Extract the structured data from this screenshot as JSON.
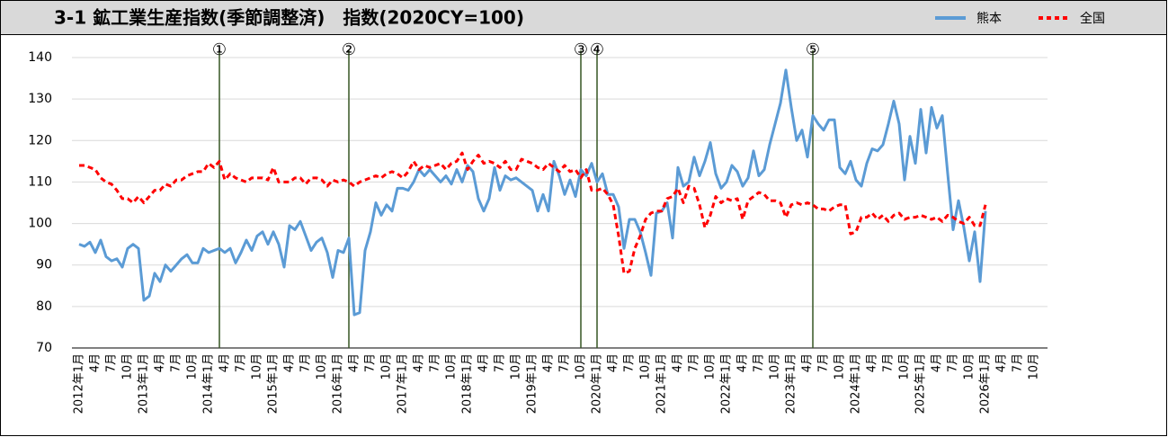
{
  "chart_data": {
    "type": "line",
    "title": "3-1 鉱工業生産指数(季節調整済)　指数(2020CY=100)",
    "categories": [
      "2012年1月",
      null,
      null,
      "4月",
      null,
      null,
      "7月",
      null,
      null,
      "10月",
      null,
      null,
      "2013年1月",
      null,
      null,
      "4月",
      null,
      null,
      "7月",
      null,
      null,
      "10月",
      null,
      null,
      "2014年1月",
      null,
      null,
      "4月",
      null,
      null,
      "7月",
      null,
      null,
      "10月",
      null,
      null,
      "2015年1月",
      null,
      null,
      "4月",
      null,
      null,
      "7月",
      null,
      null,
      "10月",
      null,
      null,
      "2016年1月",
      null,
      null,
      "4月",
      null,
      null,
      "7月",
      null,
      null,
      "10月",
      null,
      null,
      "2017年1月",
      null,
      null,
      "4月",
      null,
      null,
      "7月",
      null,
      null,
      "10月",
      null,
      null,
      "2018年1月",
      null,
      null,
      "4月",
      null,
      null,
      "7月",
      null,
      null,
      "10月",
      null,
      null,
      "2019年1月",
      null,
      null,
      "4月",
      null,
      null,
      "7月",
      null,
      null,
      "10月",
      null,
      null,
      "2020年1月",
      null,
      null,
      "4月",
      null,
      null,
      "7月",
      null,
      null,
      "10月",
      null,
      null,
      "2021年1月",
      null,
      null,
      "4月",
      null,
      null,
      "7月",
      null,
      null,
      "10月",
      null,
      null,
      "2022年1月",
      null,
      null,
      "4月",
      null,
      null,
      "7月",
      null,
      null,
      "10月",
      null,
      null,
      "2023年1月",
      null,
      null,
      "4月",
      null,
      null,
      "7月",
      null,
      null,
      "10月",
      null,
      null,
      "2024年1月",
      null,
      null,
      "4月",
      null,
      null,
      "7月",
      null,
      null,
      "10月",
      null,
      null,
      "2025年1月",
      null,
      null,
      "4月",
      null,
      null,
      "7月",
      null,
      null,
      "10月",
      null,
      null,
      "2026年1月",
      null,
      null,
      "4月",
      null,
      null,
      "7月",
      null,
      null,
      "10月"
    ],
    "series": [
      {
        "name": "熊本",
        "color": "#5b9bd5",
        "dash": false,
        "values": [
          95,
          94.5,
          95.5,
          93,
          96,
          92,
          91,
          91.5,
          89.5,
          94,
          95,
          94,
          81.5,
          82.5,
          88,
          86,
          90,
          88.5,
          90,
          91.5,
          92.5,
          90.5,
          90.5,
          94,
          93,
          93.5,
          94,
          93,
          94,
          90.5,
          93,
          96,
          93.5,
          97,
          98,
          95,
          98,
          95,
          89.5,
          99.5,
          98.5,
          100.5,
          97,
          93.5,
          95.5,
          96.5,
          93,
          87,
          93.5,
          93,
          96.5,
          78,
          78.5,
          93.5,
          98,
          105,
          102,
          104.5,
          103,
          108.5,
          108.5,
          108,
          110,
          113,
          111.5,
          113,
          111.5,
          110,
          111.5,
          109.5,
          113,
          110,
          114,
          112.5,
          106,
          103,
          106,
          113.5,
          108,
          111.5,
          110.5,
          111,
          110,
          109,
          108,
          103,
          107,
          103,
          115,
          111.5,
          107,
          110.5,
          106.5,
          113,
          111.5,
          114.5,
          110,
          112,
          107,
          107,
          104,
          94,
          101,
          101,
          98,
          93,
          87.5,
          102.5,
          103,
          105,
          96.5,
          113.5,
          109,
          110,
          116,
          111.5,
          115,
          119.5,
          112,
          108.5,
          110,
          114,
          112.5,
          109,
          111,
          117.5,
          111.5,
          113,
          119,
          124,
          129,
          137,
          128,
          120,
          122.5,
          116,
          126,
          124,
          122.5,
          125,
          125,
          113.5,
          112,
          115,
          110.5,
          109,
          114.5,
          118,
          117.5,
          119,
          124,
          129.5,
          124,
          110.5,
          121,
          114.5,
          127.5,
          117,
          128,
          123,
          126,
          112,
          98.5,
          105.5,
          99,
          91,
          98,
          86,
          103,
          null,
          null,
          null,
          null,
          null,
          null,
          null,
          null,
          null
        ]
      },
      {
        "name": "全国",
        "color": "#ff0000",
        "dash": true,
        "values": [
          114,
          114,
          113.5,
          113,
          111,
          110,
          109.5,
          108,
          106,
          106,
          105,
          106.5,
          105,
          106.5,
          108,
          108,
          109.5,
          109,
          110.5,
          110.5,
          111.5,
          112,
          112.5,
          112.5,
          114.5,
          113.5,
          115,
          110.5,
          112,
          111,
          110.5,
          110,
          111,
          111,
          111,
          110.5,
          113.5,
          110,
          110,
          110,
          111,
          111,
          109.5,
          111,
          111,
          110.5,
          109,
          110.5,
          110,
          110.5,
          110,
          109,
          110,
          110.5,
          111,
          111.5,
          111,
          112,
          112.5,
          112,
          111,
          112.5,
          115,
          113,
          114,
          113.5,
          114,
          114.5,
          113,
          114.5,
          115,
          117,
          113,
          115,
          116.5,
          114.5,
          115,
          114.5,
          113.5,
          115,
          113,
          113,
          115.5,
          115,
          114.5,
          113.5,
          113,
          114.5,
          113.5,
          112.5,
          114,
          112.5,
          113,
          111,
          113,
          108,
          108,
          108.5,
          107,
          104.5,
          97,
          88,
          88.5,
          94,
          97,
          101,
          102.5,
          103,
          103,
          106,
          106.5,
          108.5,
          105,
          109,
          108.5,
          104.5,
          99,
          102,
          106.5,
          105,
          106,
          105.5,
          106,
          101,
          105.5,
          106.5,
          107.5,
          107,
          105.5,
          105.5,
          105,
          101.5,
          104.5,
          105,
          104.5,
          105,
          104.5,
          103.5,
          103.5,
          103,
          104,
          104.5,
          104.5,
          97.5,
          98,
          101.5,
          101.5,
          102.5,
          101,
          102,
          100.5,
          102,
          102.5,
          101,
          101.5,
          101.5,
          102,
          101.5,
          101,
          101.5,
          100.5,
          102,
          101.5,
          100.5,
          100,
          101.5,
          99.5,
          99.5,
          104.5,
          null,
          null,
          null,
          null,
          null,
          null,
          null,
          null,
          null
        ]
      }
    ],
    "annotations": [
      {
        "label": "①",
        "x": 26
      },
      {
        "label": "②",
        "x": 50
      },
      {
        "label": "③",
        "x": 93
      },
      {
        "label": "④",
        "x": 96
      },
      {
        "label": "⑤",
        "x": 136
      }
    ],
    "ylim": [
      70,
      140
    ],
    "yticks": [
      70,
      80,
      90,
      100,
      110,
      120,
      130,
      140
    ],
    "grid": true
  }
}
